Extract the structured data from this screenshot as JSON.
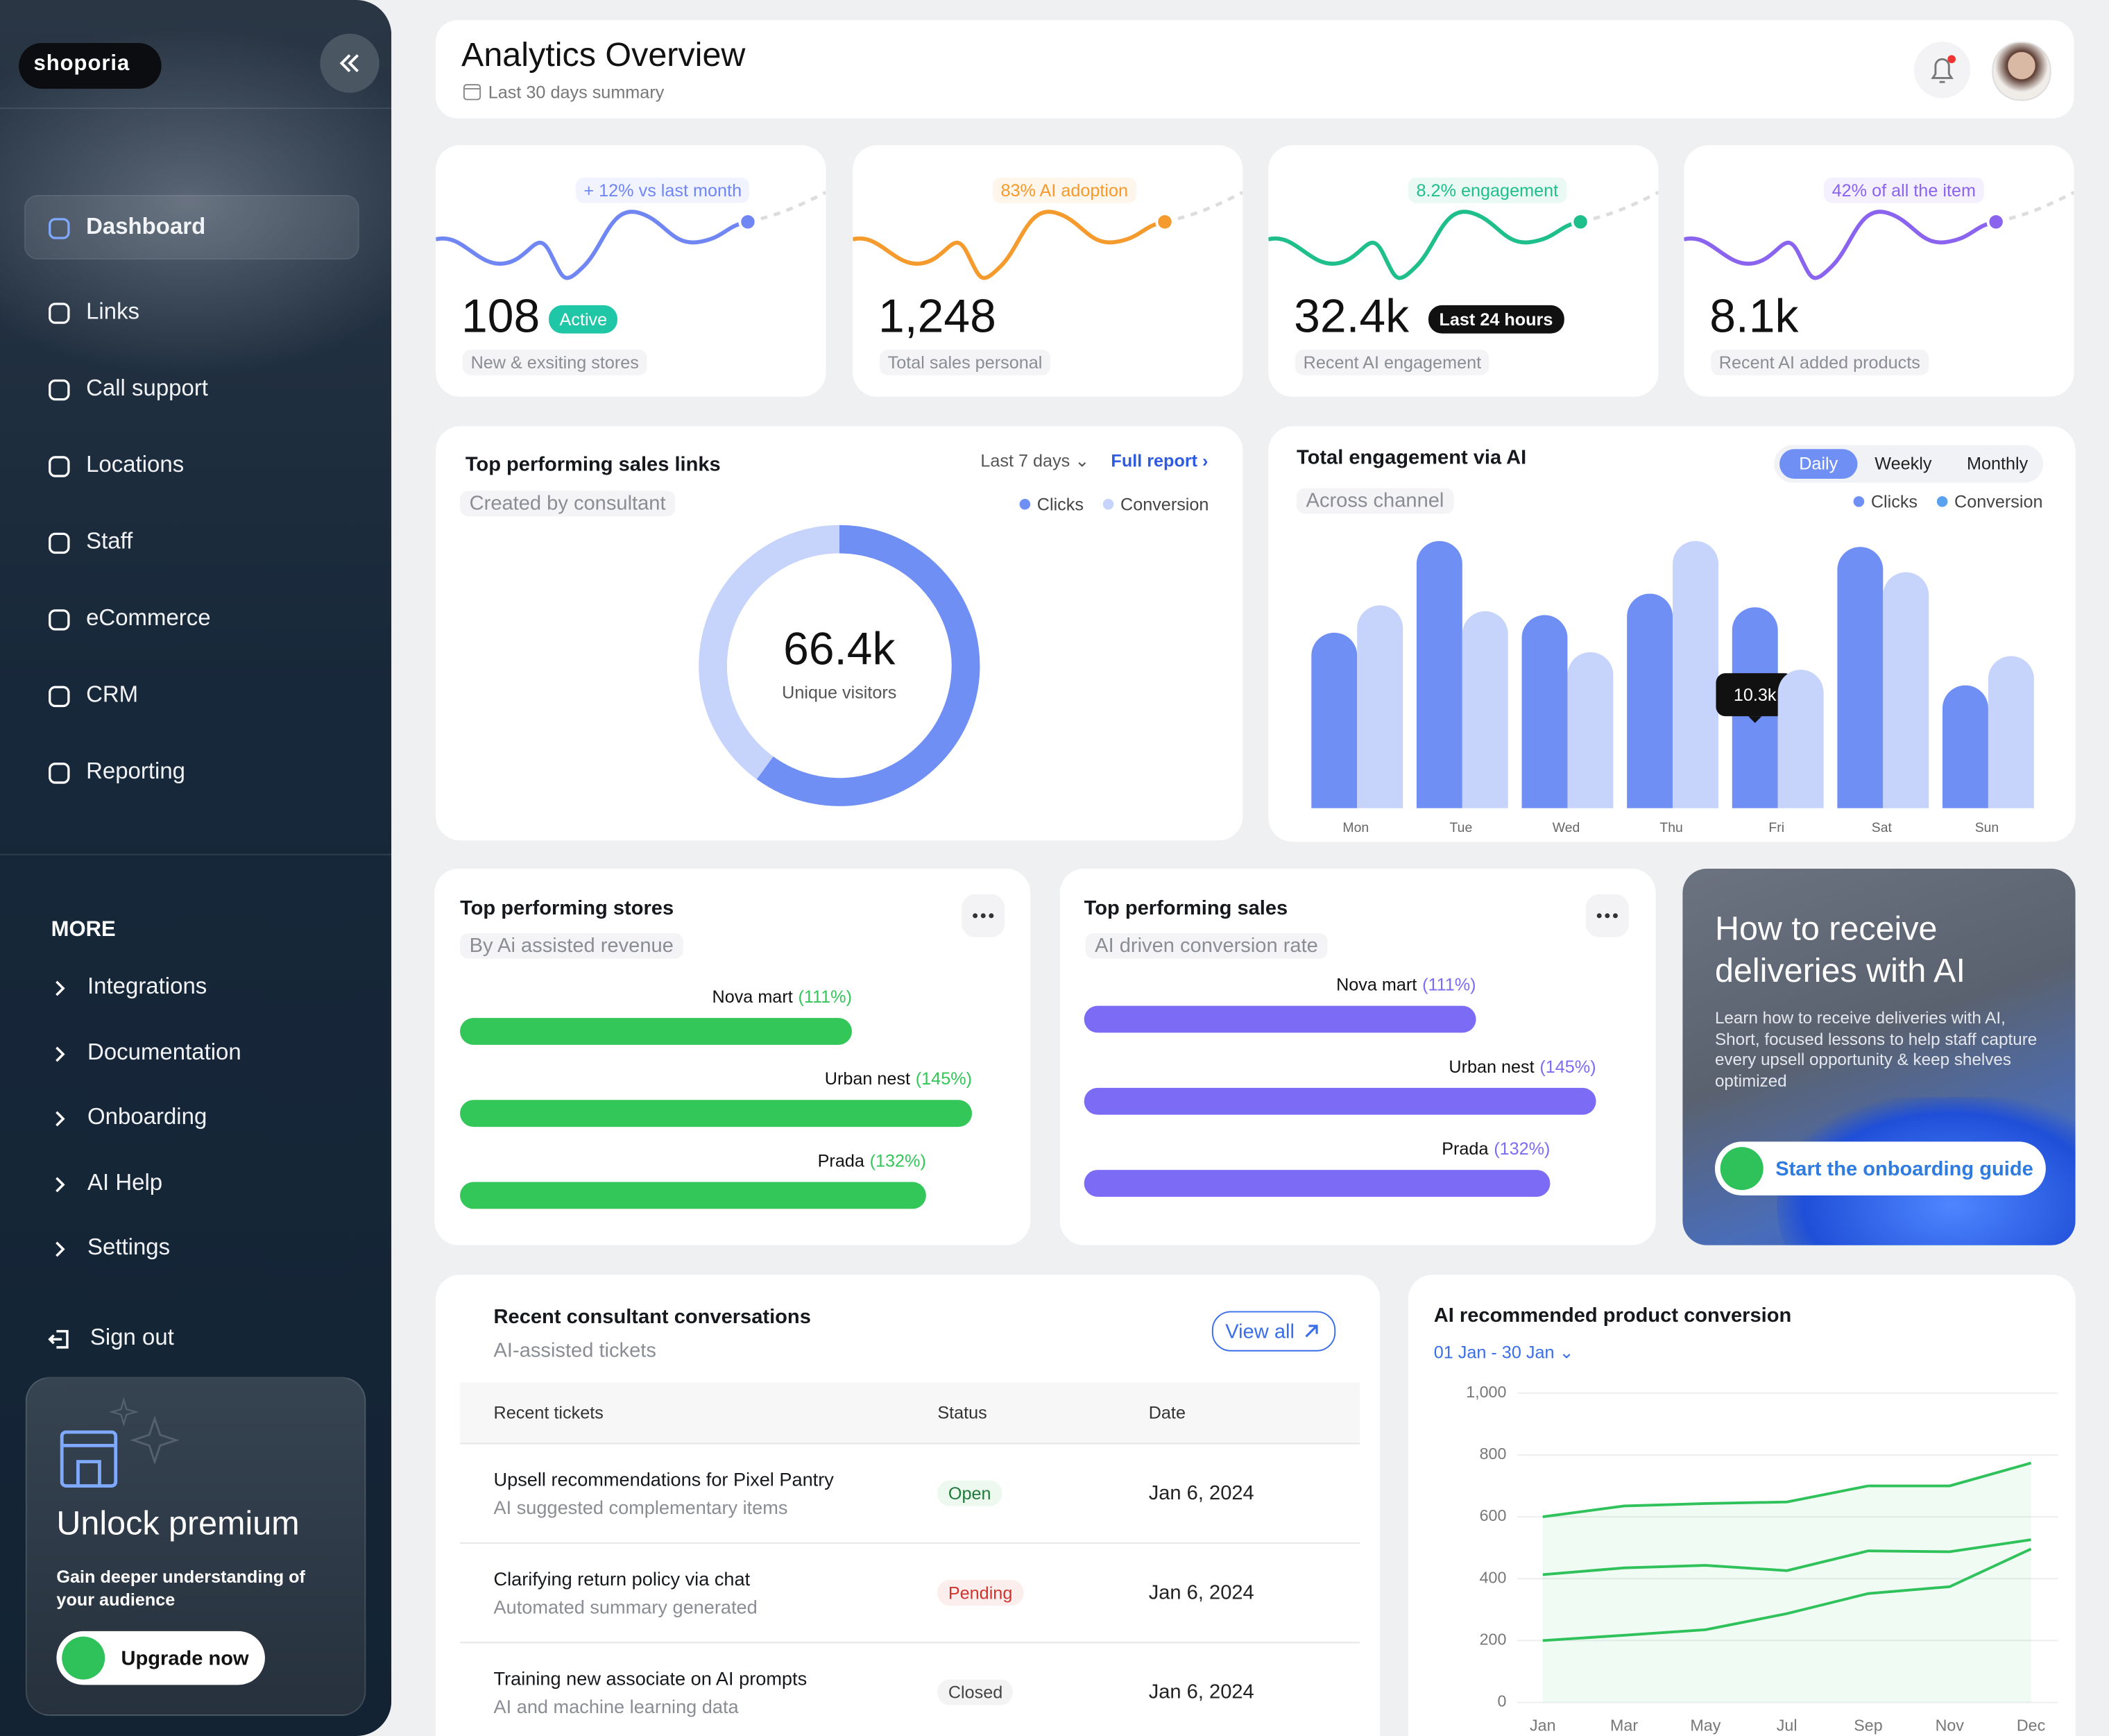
{
  "sidebar": {
    "logo": "shoporia",
    "active": 0,
    "nav": [
      "Dashboard",
      "Links",
      "Call support",
      "Locations",
      "Staff",
      "eCommerce",
      "CRM",
      "Reporting"
    ],
    "more_title": "MORE",
    "more": [
      "Integrations",
      "Documentation",
      "Onboarding",
      "AI Help",
      "Settings"
    ],
    "sign_out": "Sign out",
    "premium": {
      "title": "Unlock premium",
      "text": "Gain deeper understanding of your audience",
      "button": "Upgrade now"
    }
  },
  "header": {
    "title": "Analytics Overview",
    "subtitle": "Last 30 days summary"
  },
  "kpis": [
    {
      "trend": "+ 12% vs last month",
      "value": "108",
      "badge": "Active",
      "label": "New & exsiting stores",
      "color": "#6f86f3"
    },
    {
      "trend": "83% AI adoption",
      "value": "1,248",
      "label": "Total sales personal",
      "color": "#f59a2c"
    },
    {
      "trend": "8.2% engagement",
      "value": "32.4k",
      "badge": "Last 24 hours",
      "label": "Recent AI engagement",
      "color": "#1fbf8c"
    },
    {
      "trend": "42% of all the item",
      "value": "8.1k",
      "label": "Recent AI added products",
      "color": "#8a63ef"
    }
  ],
  "chart_data": [
    {
      "type": "donut",
      "title": "Top performing sales links",
      "subtitle": "Created by consultant",
      "period": "Last 7 days",
      "link": "Full report",
      "center_value": "66.4k",
      "center_label": "Unique visitors",
      "categories": [
        "Clicks",
        "Conversion"
      ],
      "values": [
        60,
        40
      ],
      "colors": [
        "#6f8ff5",
        "#c6d3fb"
      ]
    },
    {
      "type": "bar",
      "title": "Total engagement via AI",
      "subtitle": "Across channel",
      "tabs": [
        "Daily",
        "Weekly",
        "Monthly"
      ],
      "active_tab": 0,
      "categories": [
        "Mon",
        "Tue",
        "Wed",
        "Thu",
        "Fri",
        "Sat",
        "Sun"
      ],
      "series": [
        {
          "name": "Clicks",
          "color": "#6f8ff5",
          "values": [
            9.0,
            13.7,
            9.9,
            11.0,
            10.3,
            13.4,
            6.3
          ],
          "value_labels": [
            null,
            null,
            null,
            null,
            "10.3k",
            null,
            null
          ]
        },
        {
          "name": "Conversion",
          "color": "#c6d3fb",
          "values": [
            10.4,
            10.1,
            8.0,
            13.7,
            7.1,
            12.1,
            7.8
          ]
        }
      ],
      "ylim": [
        0,
        14
      ]
    },
    {
      "type": "hbar",
      "title": "Top performing stores",
      "subtitle": "By Ai assisted revenue",
      "categories": [
        "Nova mart",
        "Urban nest",
        "Prada"
      ],
      "values": [
        111,
        145,
        132
      ],
      "value_labels": [
        "(111%)",
        "(145%)",
        "(132%)"
      ],
      "color": "#33c659",
      "xlim": [
        0,
        160
      ]
    },
    {
      "type": "hbar",
      "title": "Top performing sales",
      "subtitle": "AI driven conversion rate",
      "categories": [
        "Nova mart",
        "Urban nest",
        "Prada"
      ],
      "values": [
        111,
        145,
        132
      ],
      "value_labels": [
        "(111%)",
        "(145%)",
        "(132%)"
      ],
      "color": "#7c6cf5",
      "xlim": [
        0,
        160
      ]
    },
    {
      "type": "line",
      "title": "AI recommended product conversion",
      "date_range": "01 Jan - 30 Jan",
      "categories": [
        "Jan",
        "Mar",
        "May",
        "Jul",
        "Sep",
        "Nov",
        "Dec"
      ],
      "series": [
        {
          "color": "#2fc25b",
          "values": [
            600,
            635,
            643,
            648,
            700,
            700,
            774
          ]
        },
        {
          "color": "#2fc25b",
          "values": [
            413,
            435,
            443,
            426,
            490,
            487,
            526
          ]
        },
        {
          "color": "#2fc25b",
          "values": [
            200,
            217,
            235,
            287,
            352,
            374,
            496
          ]
        }
      ],
      "ylim": [
        0,
        1000
      ],
      "yticks": [
        0,
        200,
        400,
        600,
        800,
        {
          "value": 1000,
          "label": "1,000"
        }
      ],
      "grid": true
    }
  ],
  "promo": {
    "title": "How to receive deliveries with AI",
    "text": "Learn how to receive deliveries with AI, Short, focused lessons to help staff capture every upsell opportunity & keep shelves optimized",
    "button": "Start the onboarding guide"
  },
  "table": {
    "title": "Recent consultant conversations",
    "subtitle": "AI-assisted tickets",
    "button": "View all",
    "columns": [
      "Recent tickets",
      "Status",
      "Date"
    ],
    "rows": [
      [
        "Upsell recommendations for Pixel Pantry",
        "AI suggested complementary items",
        "Open",
        "Jan 6, 2024"
      ],
      [
        "Clarifying return policy via chat",
        "Automated summary generated",
        "Pending",
        "Jan 6, 2024"
      ],
      [
        "Training new associate on AI prompts",
        "AI and machine learning data",
        "Closed",
        "Jan 6, 2024"
      ]
    ]
  }
}
